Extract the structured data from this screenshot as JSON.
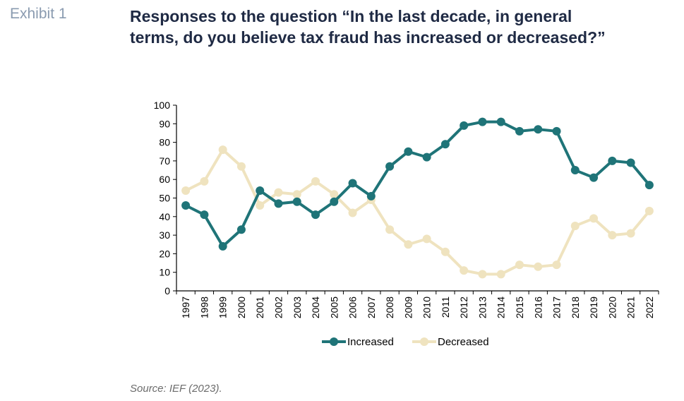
{
  "header": {
    "exhibit": "Exhibit 1",
    "title": "Responses to the question “In the last decade, in general\nterms, do you believe tax fraud has increased or decreased?”"
  },
  "footer": {
    "source": "Source: IEF (2023)."
  },
  "colors": {
    "increased": "#1f7478",
    "decreased": "#efe3bf"
  },
  "chart_data": {
    "type": "line",
    "title": "Responses to the question “In the last decade, in general terms, do you believe tax fraud has increased or decreased?”",
    "xlabel": "",
    "ylabel": "",
    "categories": [
      "1997",
      "1998",
      "1999",
      "2000",
      "2001",
      "2002",
      "2003",
      "2004",
      "2005",
      "2006",
      "2007",
      "2008",
      "2009",
      "2010",
      "2011",
      "2012",
      "2013",
      "2014",
      "2015",
      "2016",
      "2017",
      "2018",
      "2019",
      "2020",
      "2021",
      "2022"
    ],
    "ylim": [
      0,
      100
    ],
    "yticks": [
      0,
      10,
      20,
      30,
      40,
      50,
      60,
      70,
      80,
      90,
      100
    ],
    "grid": false,
    "legend": "bottom-center",
    "series": [
      {
        "name": "Increased",
        "values": [
          46,
          41,
          24,
          33,
          54,
          47,
          48,
          41,
          48,
          58,
          51,
          67,
          75,
          72,
          79,
          89,
          91,
          91,
          86,
          87,
          86,
          65,
          61,
          70,
          69,
          57
        ]
      },
      {
        "name": "Decreased",
        "values": [
          54,
          59,
          76,
          67,
          46,
          53,
          52,
          59,
          52,
          42,
          49,
          33,
          25,
          28,
          21,
          11,
          9,
          9,
          14,
          13,
          14,
          35,
          39,
          30,
          31,
          43
        ]
      }
    ]
  }
}
